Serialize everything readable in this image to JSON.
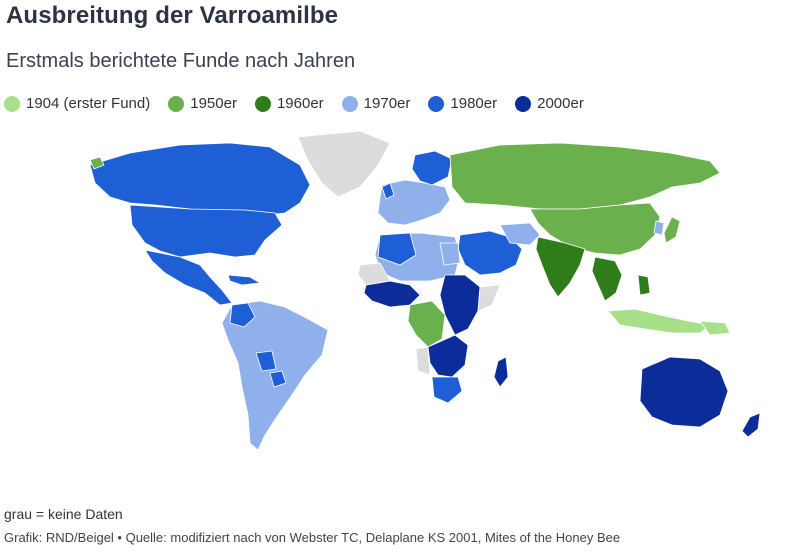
{
  "title": "Ausbreitung der Varroamilbe",
  "subtitle": "Erstmals berichtete Funde nach Jahren",
  "legend": [
    {
      "label": "1904 (erster Fund)",
      "color": "#a8e08a"
    },
    {
      "label": "1950er",
      "color": "#6ab04c"
    },
    {
      "label": "1960er",
      "color": "#2e7d1a"
    },
    {
      "label": "1970er",
      "color": "#8fb0ea"
    },
    {
      "label": "1980er",
      "color": "#1f5fd6"
    },
    {
      "label": "2000er",
      "color": "#0c2d99"
    }
  ],
  "no_data_color": "#dcdcdc",
  "note": "grau = keine Daten",
  "credit": "Grafik: RND/Beigel • Quelle: modifiziert nach von Webster TC, Delaplane KS 2001, Mites of the Honey Bee"
}
